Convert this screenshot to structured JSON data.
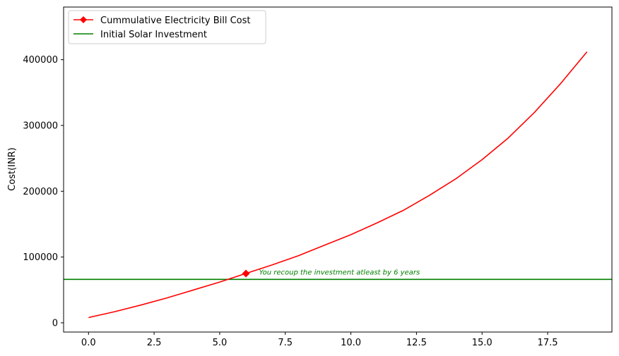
{
  "chart_data": {
    "type": "line",
    "title": "",
    "xlabel": "",
    "ylabel": "Cost(INR)",
    "xlim": [
      -0.95,
      19.95
    ],
    "ylim": [
      -14000,
      480000
    ],
    "x_ticks": [
      0.0,
      2.5,
      5.0,
      7.5,
      10.0,
      12.5,
      15.0,
      17.5
    ],
    "x_tick_labels": [
      "0.0",
      "2.5",
      "5.0",
      "7.5",
      "10.0",
      "12.5",
      "15.0",
      "17.5"
    ],
    "y_ticks": [
      0,
      100000,
      200000,
      300000,
      400000
    ],
    "y_tick_labels": [
      "0",
      "100000",
      "200000",
      "300000",
      "400000"
    ],
    "grid": false,
    "legend_position": "top-left",
    "series": [
      {
        "name": "Cummulative Electricity Bill Cost",
        "color": "#ff0000",
        "marker": "diamond",
        "marker_points": [
          {
            "x": 6,
            "y": 75000
          }
        ],
        "x": [
          0,
          1,
          2,
          3,
          4,
          5,
          6,
          7,
          8,
          9,
          10,
          11,
          12,
          13,
          14,
          15,
          16,
          17,
          18,
          19
        ],
        "y": [
          8000,
          17000,
          27000,
          38000,
          50000,
          62000,
          75000,
          88000,
          102000,
          118000,
          134000,
          152000,
          171000,
          194000,
          219000,
          248000,
          281000,
          320000,
          364000,
          412000
        ]
      },
      {
        "name": "Initial Solar Investment",
        "color": "#008000",
        "type": "hline",
        "y": 66000
      }
    ],
    "annotations": [
      {
        "text": "You recoup the investment atleast by 6 years",
        "x": 6.5,
        "y": 71000,
        "color": "#008000"
      }
    ]
  }
}
